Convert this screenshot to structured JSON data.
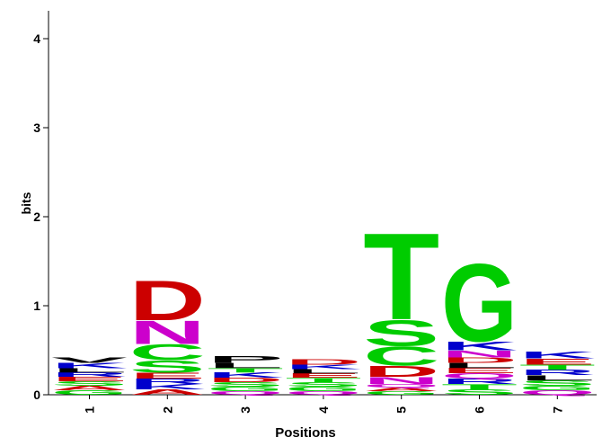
{
  "chart_data": {
    "type": "logo",
    "ylabel": "bits",
    "xlabel": "Positions",
    "ylim": [
      0,
      4.3
    ],
    "yticks": [
      0,
      1,
      2,
      3,
      4
    ],
    "categories": [
      "1",
      "2",
      "3",
      "4",
      "5",
      "6",
      "7"
    ],
    "stacks": [
      [
        {
          "letter": "G",
          "height": 0.05,
          "color": "#00CC00"
        },
        {
          "letter": "A",
          "height": 0.05,
          "color": "#CC0000"
        },
        {
          "letter": "S",
          "height": 0.05,
          "color": "#00CC00"
        },
        {
          "letter": "E",
          "height": 0.05,
          "color": "#CC0000"
        },
        {
          "letter": "R",
          "height": 0.05,
          "color": "#0000CC"
        },
        {
          "letter": "L",
          "height": 0.05,
          "color": "#000000"
        },
        {
          "letter": "K",
          "height": 0.06,
          "color": "#0000CC"
        },
        {
          "letter": "V",
          "height": 0.06,
          "color": "#000000"
        }
      ],
      [
        {
          "letter": "A",
          "height": 0.06,
          "color": "#CC0000"
        },
        {
          "letter": "K",
          "height": 0.06,
          "color": "#0000CC"
        },
        {
          "letter": "R",
          "height": 0.06,
          "color": "#0000CC"
        },
        {
          "letter": "E",
          "height": 0.07,
          "color": "#CC0000"
        },
        {
          "letter": "S",
          "height": 0.14,
          "color": "#00CC00"
        },
        {
          "letter": "C",
          "height": 0.18,
          "color": "#00CC00"
        },
        {
          "letter": "N",
          "height": 0.27,
          "color": "#CC00CC"
        },
        {
          "letter": "D",
          "height": 0.46,
          "color": "#CC0000"
        }
      ],
      [
        {
          "letter": "Q",
          "height": 0.04,
          "color": "#CC00CC"
        },
        {
          "letter": "G",
          "height": 0.05,
          "color": "#00CC00"
        },
        {
          "letter": "S",
          "height": 0.05,
          "color": "#00CC00"
        },
        {
          "letter": "D",
          "height": 0.05,
          "color": "#CC0000"
        },
        {
          "letter": "K",
          "height": 0.06,
          "color": "#0000CC"
        },
        {
          "letter": "T",
          "height": 0.05,
          "color": "#00CC00"
        },
        {
          "letter": "L",
          "height": 0.06,
          "color": "#000000"
        },
        {
          "letter": "P",
          "height": 0.08,
          "color": "#000000"
        }
      ],
      [
        {
          "letter": "Q",
          "height": 0.04,
          "color": "#CC00CC"
        },
        {
          "letter": "G",
          "height": 0.05,
          "color": "#00CC00"
        },
        {
          "letter": "S",
          "height": 0.05,
          "color": "#00CC00"
        },
        {
          "letter": "T",
          "height": 0.05,
          "color": "#00CC00"
        },
        {
          "letter": "E",
          "height": 0.05,
          "color": "#CC0000"
        },
        {
          "letter": "L",
          "height": 0.05,
          "color": "#000000"
        },
        {
          "letter": "K",
          "height": 0.05,
          "color": "#0000CC"
        },
        {
          "letter": "D",
          "height": 0.06,
          "color": "#CC0000"
        }
      ],
      [
        {
          "letter": "G",
          "height": 0.04,
          "color": "#00CC00"
        },
        {
          "letter": "A",
          "height": 0.04,
          "color": "#CC0000"
        },
        {
          "letter": "Q",
          "height": 0.04,
          "color": "#CC00CC"
        },
        {
          "letter": "N",
          "height": 0.08,
          "color": "#CC00CC"
        },
        {
          "letter": "D",
          "height": 0.13,
          "color": "#CC0000"
        },
        {
          "letter": "C",
          "height": 0.22,
          "color": "#00CC00"
        },
        {
          "letter": "S",
          "height": 0.3,
          "color": "#00CC00"
        },
        {
          "letter": "T",
          "height": 1.0,
          "color": "#00CC00"
        }
      ],
      [
        {
          "letter": "S",
          "height": 0.06,
          "color": "#00CC00"
        },
        {
          "letter": "T",
          "height": 0.06,
          "color": "#00CC00"
        },
        {
          "letter": "R",
          "height": 0.06,
          "color": "#0000CC"
        },
        {
          "letter": "Q",
          "height": 0.06,
          "color": "#CC00CC"
        },
        {
          "letter": "E",
          "height": 0.06,
          "color": "#CC0000"
        },
        {
          "letter": "L",
          "height": 0.06,
          "color": "#000000"
        },
        {
          "letter": "D",
          "height": 0.06,
          "color": "#CC0000"
        },
        {
          "letter": "N",
          "height": 0.08,
          "color": "#CC00CC"
        },
        {
          "letter": "K",
          "height": 0.1,
          "color": "#0000CC"
        },
        {
          "letter": "G",
          "height": 0.9,
          "color": "#00CC00"
        }
      ],
      [
        {
          "letter": "Q",
          "height": 0.05,
          "color": "#CC00CC"
        },
        {
          "letter": "G",
          "height": 0.05,
          "color": "#00CC00"
        },
        {
          "letter": "S",
          "height": 0.06,
          "color": "#00CC00"
        },
        {
          "letter": "L",
          "height": 0.06,
          "color": "#000000"
        },
        {
          "letter": "R",
          "height": 0.06,
          "color": "#0000CC"
        },
        {
          "letter": "T",
          "height": 0.06,
          "color": "#00CC00"
        },
        {
          "letter": "E",
          "height": 0.07,
          "color": "#CC0000"
        },
        {
          "letter": "K",
          "height": 0.08,
          "color": "#0000CC"
        }
      ]
    ]
  }
}
